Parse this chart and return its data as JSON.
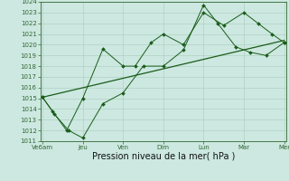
{
  "background_color": "#cce8e0",
  "grid_color": "#aaccbb",
  "line_color": "#1a5c1a",
  "xlabel": "Pression niveau de la mer( hPa )",
  "ylim": [
    1011,
    1024
  ],
  "yticks": [
    1011,
    1012,
    1013,
    1014,
    1015,
    1016,
    1017,
    1018,
    1019,
    1020,
    1021,
    1022,
    1023,
    1024
  ],
  "xtick_labels": [
    "Ve6am",
    "Jeu",
    "Ven",
    "Dim",
    "Lun",
    "Mar",
    "Mer"
  ],
  "xtick_positions": [
    0,
    1,
    2,
    3,
    4,
    5,
    6
  ],
  "series1_x": [
    0,
    6
  ],
  "series1_y": [
    1015.1,
    1020.4
  ],
  "series2_x": [
    0,
    0.25,
    0.6,
    1.0,
    1.5,
    2.0,
    2.3,
    2.7,
    3.0,
    3.5,
    4.0,
    4.5,
    5.0,
    5.35,
    5.7,
    6.0
  ],
  "series2_y": [
    1015.1,
    1013.8,
    1012.0,
    1015.0,
    1019.6,
    1018.0,
    1018.0,
    1020.2,
    1021.0,
    1020.0,
    1023.0,
    1021.8,
    1023.0,
    1022.0,
    1021.0,
    1020.2
  ],
  "series3_x": [
    0,
    0.3,
    0.65,
    1.0,
    1.5,
    2.0,
    2.5,
    3.0,
    3.5,
    4.0,
    4.35,
    4.8,
    5.15,
    5.55,
    6.0
  ],
  "series3_y": [
    1015.1,
    1013.5,
    1012.0,
    1011.3,
    1014.5,
    1015.5,
    1018.0,
    1018.0,
    1019.5,
    1023.7,
    1022.0,
    1019.8,
    1019.3,
    1019.0,
    1020.2
  ],
  "xlabel_fontsize": 7,
  "tick_fontsize": 5,
  "marker_size": 2.0
}
